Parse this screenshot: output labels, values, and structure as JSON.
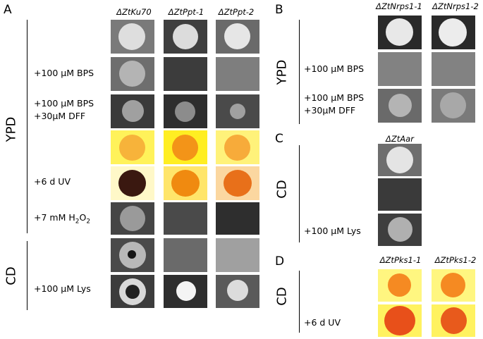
{
  "panels": {
    "A": {
      "letter": "A",
      "columns": [
        "ΔZtKu70",
        "ΔZtPpt-1",
        "ΔZtPpt-2"
      ],
      "media": [
        "YPD",
        "CD"
      ],
      "conditions": {
        "bps": "+100 μM BPS",
        "bps_dff_1": "+100 μM BPS",
        "bps_dff_2": "+30μM DFF",
        "uv": "+6 d UV",
        "h2o2_prefix": "+7 mM H",
        "h2o2_sub": "2",
        "h2o2_mid": "O",
        "h2o2_sub2": "2",
        "lys": "+100 μM Lys"
      }
    },
    "B": {
      "letter": "B",
      "columns": [
        "ΔZtNrps1-1",
        "ΔZtNrps1-2"
      ],
      "media": "YPD",
      "conditions": {
        "bps": "+100 μM BPS",
        "bps_dff_1": "+100 μM BPS",
        "bps_dff_2": "+30μM DFF"
      }
    },
    "C": {
      "letter": "C",
      "columns": [
        "ΔZtAar"
      ],
      "media": "CD",
      "conditions": {
        "lys": "+100 μM Lys"
      }
    },
    "D": {
      "letter": "D",
      "columns": [
        "ΔZtPks1-1",
        "ΔZtPks1-2"
      ],
      "media": "CD",
      "conditions": {
        "uv": "+6 d UV"
      }
    }
  },
  "colors": {
    "yellow_bg": "#ffff55",
    "pale_yellow_bg": "#fff8b0",
    "dark_tile": "#3a3a3a",
    "grey_tile": "#6e6e6e",
    "orange_colony": "#f5a020",
    "deep_orange": "#e8541a",
    "brown_colony": "#3a1a10"
  }
}
